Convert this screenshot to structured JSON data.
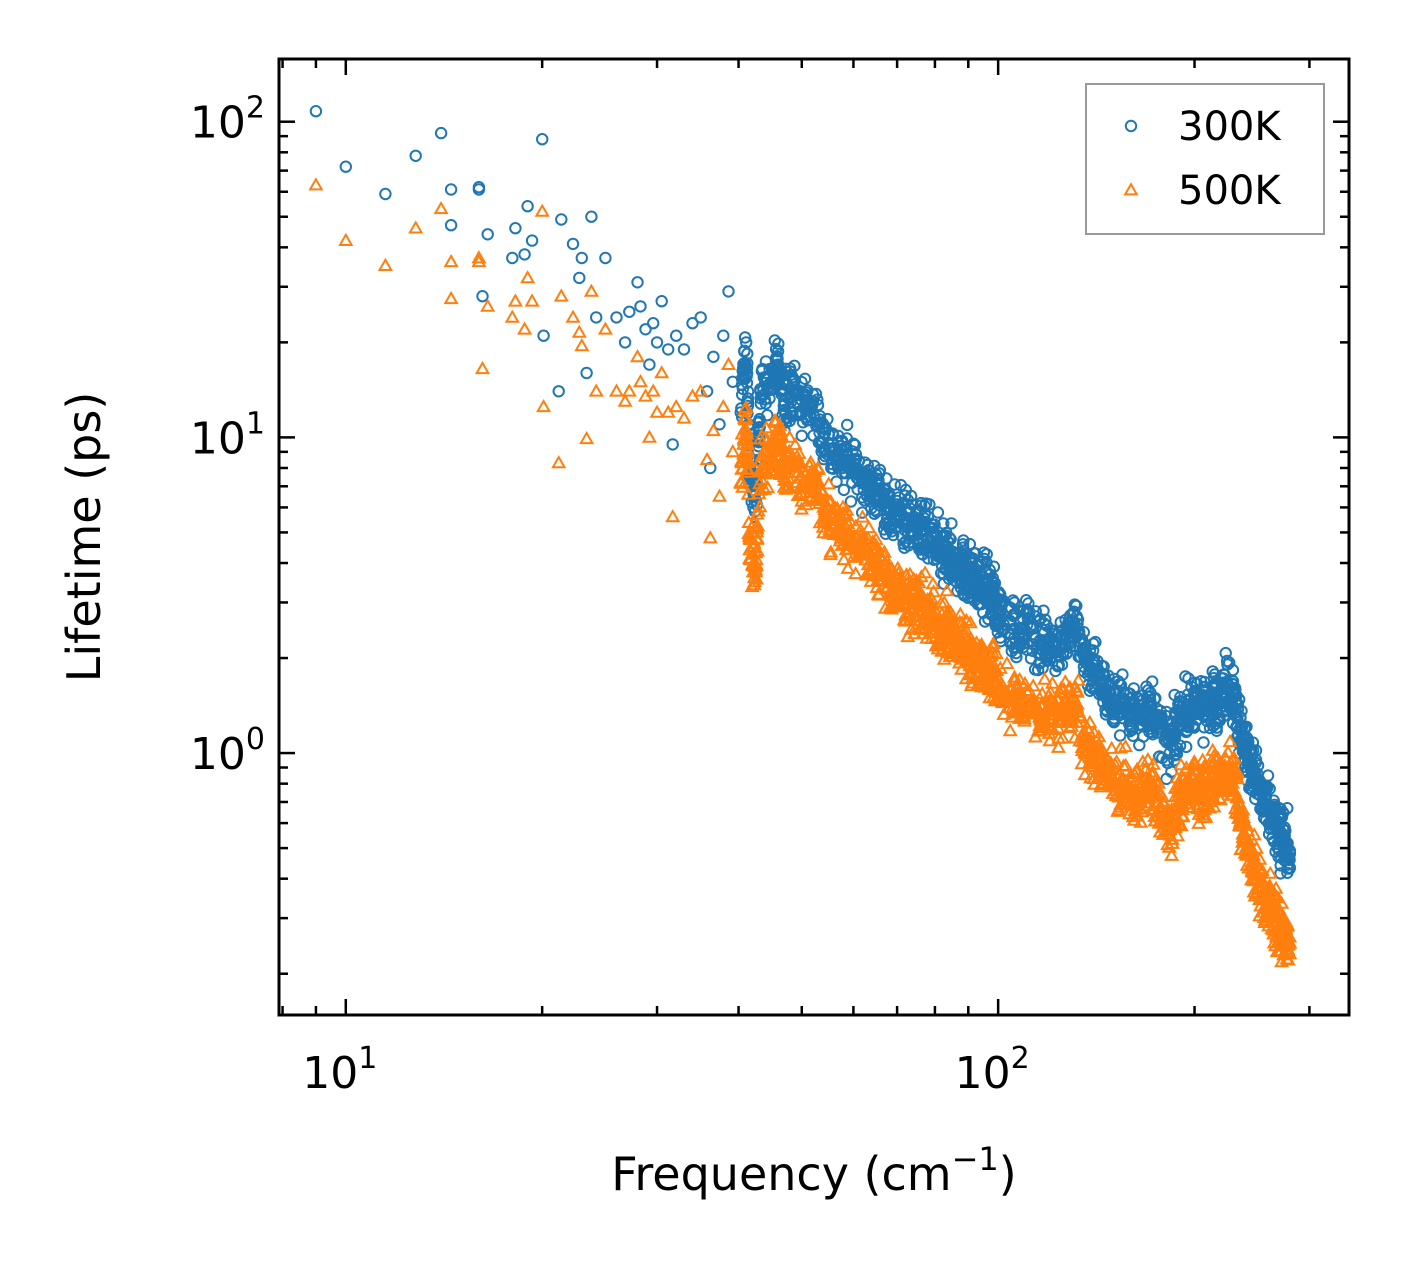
{
  "chart_data": {
    "type": "scatter",
    "xscale": "log",
    "yscale": "log",
    "xlabel": "Frequency (cm",
    "xlabel_sup": "−1",
    "xlabel_end": ")",
    "ylabel": "Lifetime (ps)",
    "xlim": [
      7.9,
      345
    ],
    "ylim": [
      0.148,
      158
    ],
    "x_major_ticks": [
      {
        "value": 10,
        "base": "10",
        "exp": "1"
      },
      {
        "value": 100,
        "base": "10",
        "exp": "2"
      }
    ],
    "y_major_ticks": [
      {
        "value": 1,
        "base": "10",
        "exp": "0"
      },
      {
        "value": 10,
        "base": "10",
        "exp": "1"
      },
      {
        "value": 100,
        "base": "10",
        "exp": "2"
      }
    ],
    "legend": {
      "position": "top-right"
    },
    "series": [
      {
        "name": "300K",
        "marker": "circle",
        "color": "#1f77b4",
        "points": [
          [
            9.0,
            108
          ],
          [
            10.0,
            72
          ],
          [
            11.5,
            59
          ],
          [
            12.8,
            78
          ],
          [
            14.0,
            92
          ],
          [
            14.5,
            61
          ],
          [
            14.5,
            47
          ],
          [
            16.0,
            62
          ],
          [
            16.0,
            61
          ],
          [
            16.2,
            28
          ],
          [
            16.5,
            44
          ],
          [
            18.0,
            37
          ],
          [
            18.2,
            46
          ],
          [
            18.8,
            38
          ],
          [
            19.0,
            54
          ],
          [
            19.3,
            42
          ],
          [
            20.0,
            88
          ],
          [
            20.1,
            21
          ],
          [
            21.2,
            14
          ],
          [
            21.4,
            49
          ],
          [
            22.3,
            41
          ],
          [
            22.8,
            32
          ],
          [
            23.0,
            37
          ],
          [
            23.4,
            16
          ],
          [
            23.8,
            50
          ],
          [
            24.2,
            24
          ],
          [
            25.0,
            37
          ],
          [
            26.0,
            24
          ],
          [
            26.8,
            20
          ],
          [
            27.2,
            25
          ],
          [
            28.0,
            31
          ],
          [
            28.3,
            26
          ],
          [
            28.8,
            22
          ],
          [
            29.2,
            17
          ],
          [
            29.6,
            23
          ],
          [
            30.0,
            20
          ],
          [
            30.5,
            27
          ],
          [
            31.2,
            19
          ],
          [
            31.7,
            9.5
          ],
          [
            32.1,
            21
          ],
          [
            33.0,
            19
          ],
          [
            34.0,
            23
          ],
          [
            35.0,
            24
          ],
          [
            35.8,
            14
          ],
          [
            36.2,
            8
          ],
          [
            36.6,
            18
          ],
          [
            37.4,
            11
          ],
          [
            37.9,
            21
          ],
          [
            38.6,
            29
          ],
          [
            39.2,
            15
          ],
          [
            40.3,
            12
          ],
          [
            41.1,
            20
          ],
          [
            41.6,
            7.4
          ],
          [
            42.5,
            6.3
          ],
          [
            43.2,
            14
          ],
          [
            45.0,
            15
          ],
          [
            46.0,
            17
          ],
          [
            47.0,
            13
          ],
          [
            48.5,
            15
          ],
          [
            50.0,
            12
          ],
          [
            52.0,
            13
          ],
          [
            54.0,
            10
          ],
          [
            56.0,
            9
          ],
          [
            58.0,
            8.5
          ],
          [
            60.0,
            8
          ],
          [
            62.0,
            7.5
          ],
          [
            64.0,
            7
          ],
          [
            66.0,
            6.5
          ],
          [
            68.0,
            6
          ],
          [
            70.0,
            5.7
          ],
          [
            72.0,
            5.5
          ],
          [
            74.0,
            5.3
          ],
          [
            76.0,
            5
          ],
          [
            78.0,
            4.8
          ],
          [
            80.0,
            4.6
          ],
          [
            82.0,
            4.3
          ],
          [
            84.0,
            4.2
          ],
          [
            86.0,
            4
          ],
          [
            88.0,
            3.9
          ],
          [
            90.0,
            3.7
          ],
          [
            92.0,
            3.5
          ],
          [
            94.0,
            3.4
          ],
          [
            96.0,
            3.3
          ],
          [
            98.0,
            3.2
          ],
          [
            100.0,
            2.8
          ],
          [
            104.0,
            2.6
          ],
          [
            108.0,
            2.4
          ],
          [
            112.0,
            2.5
          ],
          [
            116.0,
            2.2
          ],
          [
            120.0,
            2.3
          ],
          [
            124.0,
            2.2
          ],
          [
            128.0,
            2.4
          ],
          [
            132.0,
            2.5
          ],
          [
            136.0,
            2.0
          ],
          [
            140.0,
            1.9
          ],
          [
            145.0,
            1.6
          ],
          [
            150.0,
            1.45
          ],
          [
            155.0,
            1.4
          ],
          [
            160.0,
            1.35
          ],
          [
            165.0,
            1.3
          ],
          [
            170.0,
            1.45
          ],
          [
            175.0,
            1.25
          ],
          [
            180.0,
            1.1
          ],
          [
            185.0,
            1.05
          ],
          [
            190.0,
            1.35
          ],
          [
            195.0,
            1.3
          ],
          [
            200.0,
            1.45
          ],
          [
            205.0,
            1.4
          ],
          [
            210.0,
            1.4
          ],
          [
            215.0,
            1.5
          ],
          [
            220.0,
            1.55
          ],
          [
            225.0,
            1.65
          ],
          [
            230.0,
            1.55
          ],
          [
            235.0,
            1.2
          ],
          [
            240.0,
            1.0
          ],
          [
            245.0,
            0.9
          ],
          [
            250.0,
            0.8
          ],
          [
            255.0,
            0.7
          ],
          [
            260.0,
            0.65
          ],
          [
            265.0,
            0.6
          ],
          [
            270.0,
            0.55
          ],
          [
            275.0,
            0.52
          ],
          [
            280.0,
            0.48
          ]
        ]
      },
      {
        "name": "500K",
        "marker": "triangle",
        "color": "#ff7f0e",
        "points": [
          [
            9.0,
            63
          ],
          [
            10.0,
            42
          ],
          [
            11.5,
            35
          ],
          [
            12.8,
            46
          ],
          [
            14.0,
            53
          ],
          [
            14.5,
            36
          ],
          [
            14.5,
            27.5
          ],
          [
            16.0,
            37
          ],
          [
            16.0,
            36
          ],
          [
            16.2,
            16.5
          ],
          [
            16.5,
            26
          ],
          [
            18.0,
            24
          ],
          [
            18.2,
            27
          ],
          [
            18.8,
            22
          ],
          [
            19.0,
            32
          ],
          [
            19.3,
            27
          ],
          [
            20.0,
            52
          ],
          [
            20.1,
            12.5
          ],
          [
            21.2,
            8.3
          ],
          [
            21.4,
            28
          ],
          [
            22.3,
            24
          ],
          [
            22.8,
            21.5
          ],
          [
            23.0,
            19.5
          ],
          [
            23.4,
            9.9
          ],
          [
            23.8,
            29
          ],
          [
            24.2,
            14
          ],
          [
            25.0,
            22
          ],
          [
            26.0,
            14
          ],
          [
            26.8,
            13
          ],
          [
            27.2,
            14
          ],
          [
            28.0,
            18
          ],
          [
            28.3,
            15
          ],
          [
            28.8,
            13.5
          ],
          [
            29.2,
            10
          ],
          [
            29.6,
            14
          ],
          [
            30.0,
            12
          ],
          [
            30.5,
            16
          ],
          [
            31.2,
            12
          ],
          [
            31.7,
            5.6
          ],
          [
            32.1,
            12.5
          ],
          [
            33.0,
            11.5
          ],
          [
            34.0,
            13.5
          ],
          [
            35.0,
            14
          ],
          [
            35.8,
            8.5
          ],
          [
            36.2,
            4.8
          ],
          [
            36.6,
            10.5
          ],
          [
            37.4,
            6.5
          ],
          [
            37.9,
            12.5
          ],
          [
            38.6,
            17
          ],
          [
            39.2,
            9
          ],
          [
            40.3,
            7.2
          ],
          [
            41.1,
            11.5
          ],
          [
            41.6,
            4.4
          ],
          [
            42.5,
            3.8
          ],
          [
            43.2,
            8.4
          ],
          [
            45.0,
            9
          ],
          [
            46.0,
            10
          ],
          [
            47.0,
            7.5
          ],
          [
            48.5,
            8.6
          ],
          [
            50.0,
            7
          ],
          [
            52.0,
            7.5
          ],
          [
            54.0,
            6
          ],
          [
            56.0,
            5.3
          ],
          [
            58.0,
            5
          ],
          [
            60.0,
            4.6
          ],
          [
            62.0,
            4.4
          ],
          [
            64.0,
            4.1
          ],
          [
            66.0,
            3.8
          ],
          [
            68.0,
            3.5
          ],
          [
            70.0,
            3.3
          ],
          [
            72.0,
            3.1
          ],
          [
            74.0,
            3
          ],
          [
            76.0,
            2.9
          ],
          [
            78.0,
            2.75
          ],
          [
            80.0,
            2.6
          ],
          [
            82.0,
            2.5
          ],
          [
            84.0,
            2.4
          ],
          [
            86.0,
            2.3
          ],
          [
            88.0,
            2.2
          ],
          [
            90.0,
            2.1
          ],
          [
            92.0,
            2.0
          ],
          [
            94.0,
            1.9
          ],
          [
            96.0,
            1.85
          ],
          [
            98.0,
            1.8
          ],
          [
            100.0,
            1.6
          ],
          [
            104.0,
            1.5
          ],
          [
            108.0,
            1.4
          ],
          [
            112.0,
            1.45
          ],
          [
            116.0,
            1.3
          ],
          [
            120.0,
            1.35
          ],
          [
            124.0,
            1.3
          ],
          [
            128.0,
            1.4
          ],
          [
            132.0,
            1.4
          ],
          [
            136.0,
            1.0
          ],
          [
            140.0,
            1.0
          ],
          [
            145.0,
            0.9
          ],
          [
            150.0,
            0.8
          ],
          [
            155.0,
            0.78
          ],
          [
            160.0,
            0.75
          ],
          [
            165.0,
            0.72
          ],
          [
            170.0,
            0.8
          ],
          [
            175.0,
            0.7
          ],
          [
            180.0,
            0.62
          ],
          [
            185.0,
            0.6
          ],
          [
            190.0,
            0.75
          ],
          [
            195.0,
            0.72
          ],
          [
            200.0,
            0.8
          ],
          [
            205.0,
            0.78
          ],
          [
            210.0,
            0.78
          ],
          [
            215.0,
            0.82
          ],
          [
            220.0,
            0.85
          ],
          [
            225.0,
            0.9
          ],
          [
            230.0,
            0.85
          ],
          [
            235.0,
            0.6
          ],
          [
            240.0,
            0.5
          ],
          [
            245.0,
            0.45
          ],
          [
            250.0,
            0.4
          ],
          [
            255.0,
            0.36
          ],
          [
            260.0,
            0.33
          ],
          [
            265.0,
            0.3
          ],
          [
            270.0,
            0.28
          ],
          [
            275.0,
            0.26
          ],
          [
            280.0,
            0.25
          ]
        ]
      }
    ]
  }
}
